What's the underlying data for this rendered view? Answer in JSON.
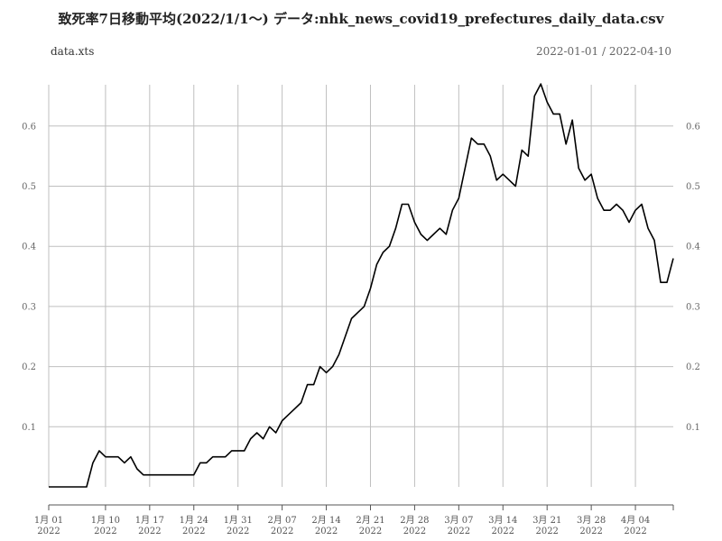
{
  "header": {
    "title": "致死率7日移動平均(2022/1/1〜) データ:nhk_news_covid19_prefectures_daily_data.csv",
    "series_label": "data.xts",
    "date_range": "2022-01-01 / 2022-04-10"
  },
  "chart_data": {
    "type": "line",
    "title": "致死率7日移動平均(2022/1/1〜) データ:nhk_news_covid19_prefectures_daily_data.csv",
    "xlabel": "",
    "ylabel": "",
    "x_start": "2022-01-01",
    "x_end": "2022-04-10",
    "ylim": [
      0,
      0.67
    ],
    "yticks": [
      "0.1",
      "0.2",
      "0.3",
      "0.4",
      "0.5",
      "0.6"
    ],
    "xtick_labels": [
      {
        "date": "2022-01-01",
        "label": "1月 01",
        "year": "2022"
      },
      {
        "date": "2022-01-10",
        "label": "1月 10",
        "year": "2022"
      },
      {
        "date": "2022-01-17",
        "label": "1月 17",
        "year": "2022"
      },
      {
        "date": "2022-01-24",
        "label": "1月 24",
        "year": "2022"
      },
      {
        "date": "2022-01-31",
        "label": "1月 31",
        "year": "2022"
      },
      {
        "date": "2022-02-07",
        "label": "2月 07",
        "year": "2022"
      },
      {
        "date": "2022-02-14",
        "label": "2月 14",
        "year": "2022"
      },
      {
        "date": "2022-02-21",
        "label": "2月 21",
        "year": "2022"
      },
      {
        "date": "2022-02-28",
        "label": "2月 28",
        "year": "2022"
      },
      {
        "date": "2022-03-07",
        "label": "3月 07",
        "year": "2022"
      },
      {
        "date": "2022-03-14",
        "label": "3月 14",
        "year": "2022"
      },
      {
        "date": "2022-03-21",
        "label": "3月 21",
        "year": "2022"
      },
      {
        "date": "2022-03-28",
        "label": "3月 28",
        "year": "2022"
      },
      {
        "date": "2022-04-04",
        "label": "4月 04",
        "year": "2022"
      }
    ],
    "grid": true,
    "right_axis": true,
    "line_color": "#000000",
    "grid_color": "#bfbfbf",
    "series": [
      {
        "values": [
          0.0,
          0.0,
          0.0,
          0.0,
          0.0,
          0.0,
          0.0,
          0.04,
          0.06,
          0.05,
          0.05,
          0.05,
          0.04,
          0.05,
          0.03,
          0.02,
          0.02,
          0.02,
          0.02,
          0.02,
          0.02,
          0.02,
          0.02,
          0.02,
          0.04,
          0.04,
          0.05,
          0.05,
          0.05,
          0.06,
          0.06,
          0.06,
          0.08,
          0.09,
          0.08,
          0.1,
          0.09,
          0.11,
          0.12,
          0.13,
          0.14,
          0.17,
          0.17,
          0.2,
          0.19,
          0.2,
          0.22,
          0.25,
          0.28,
          0.29,
          0.3,
          0.33,
          0.37,
          0.39,
          0.4,
          0.43,
          0.47,
          0.47,
          0.44,
          0.42,
          0.41,
          0.42,
          0.43,
          0.42,
          0.46,
          0.48,
          0.53,
          0.58,
          0.57,
          0.57,
          0.55,
          0.51,
          0.52,
          0.51,
          0.5,
          0.56,
          0.55,
          0.65,
          0.67,
          0.64,
          0.62,
          0.62,
          0.57,
          0.61,
          0.53,
          0.51,
          0.52,
          0.48,
          0.46,
          0.46,
          0.47,
          0.46,
          0.44,
          0.46,
          0.47,
          0.43,
          0.41,
          0.34,
          0.34,
          0.38
        ]
      }
    ]
  }
}
